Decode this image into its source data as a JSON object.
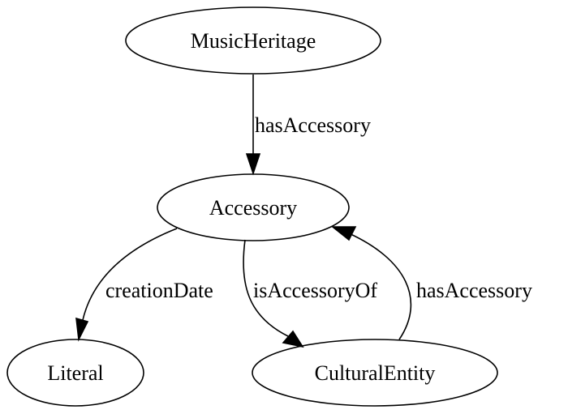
{
  "diagram": {
    "nodes": {
      "music_heritage": "MusicHeritage",
      "accessory": "Accessory",
      "literal": "Literal",
      "cultural_entity": "CulturalEntity"
    },
    "edges": {
      "music_heritage_to_accessory": "hasAccessory",
      "accessory_to_literal": "creationDate",
      "accessory_to_cultural_entity": "isAccessoryOf",
      "cultural_entity_to_accessory": "hasAccessory"
    }
  }
}
